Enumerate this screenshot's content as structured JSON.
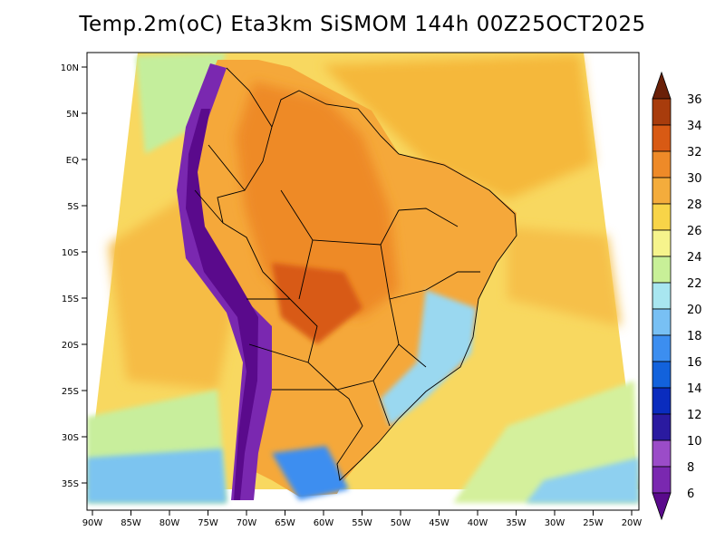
{
  "title": "Temp.2m(oC) Eta3km SiSMOM 144h 00Z25OCT2025",
  "map": {
    "region": "South America / Brazil",
    "variable": "2 m temperature",
    "unit": "oC"
  },
  "axes": {
    "lat_labels": [
      "10N",
      "5N",
      "EQ",
      "5S",
      "10S",
      "15S",
      "20S",
      "25S",
      "30S",
      "35S"
    ],
    "lon_labels": [
      "90W",
      "85W",
      "80W",
      "75W",
      "70W",
      "65W",
      "60W",
      "55W",
      "50W",
      "45W",
      "40W",
      "35W",
      "30W",
      "25W",
      "20W"
    ]
  },
  "colorbar": {
    "labels": [
      "6",
      "8",
      "10",
      "12",
      "14",
      "16",
      "18",
      "20",
      "22",
      "24",
      "26",
      "28",
      "30",
      "32",
      "34",
      "36"
    ],
    "colors": [
      "#5a0a8c",
      "#7a28b0",
      "#9b4cc8",
      "#2a1aa0",
      "#0a2cbe",
      "#1262dc",
      "#3c8ef0",
      "#78c0f4",
      "#a8e6f0",
      "#c8f098",
      "#f6f48c",
      "#f8d448",
      "#f4ac3c",
      "#ee8a28",
      "#d85a14",
      "#a83c0c",
      "#6a2008"
    ]
  }
}
